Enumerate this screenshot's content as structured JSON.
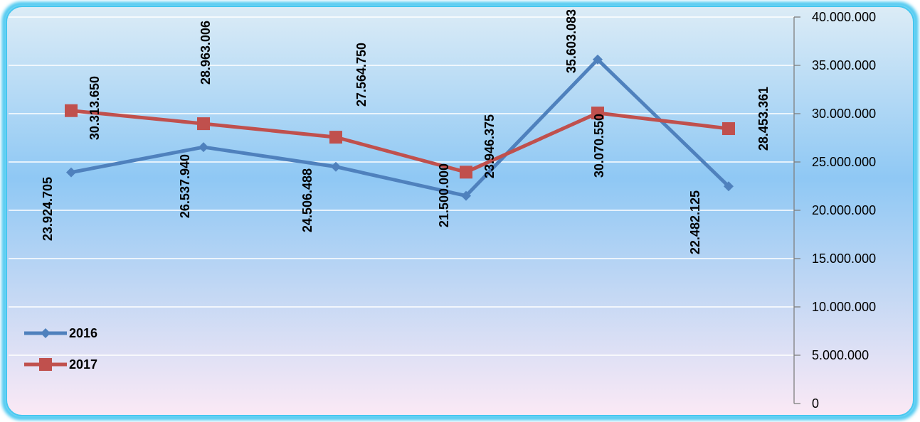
{
  "chart_data": {
    "type": "line",
    "title": "",
    "xlabel": "",
    "ylabel": "",
    "categories": [
      "",
      "",
      "",
      "",
      "",
      ""
    ],
    "ylim": [
      0,
      40000000
    ],
    "ytick_labels": [
      "0",
      "5.000.000",
      "10.000.000",
      "15.000.000",
      "20.000.000",
      "25.000.000",
      "30.000.000",
      "35.000.000",
      "40.000.000"
    ],
    "y_axis_side": "right",
    "grid": true,
    "legend_position": "left",
    "series": [
      {
        "name": "2016",
        "color": "#4f81bd",
        "marker": "diamond",
        "values": [
          23924705,
          26537940,
          24506488,
          21500000,
          35603083,
          22482125
        ],
        "labels": [
          "23.924.705",
          "26.537.940",
          "24.506.488",
          "21.500.000",
          "35.603.083",
          "22.482.125"
        ]
      },
      {
        "name": "2017",
        "color": "#c0504d",
        "marker": "square",
        "values": [
          30313650,
          28963006,
          27564750,
          23946375,
          30070550,
          28453361
        ],
        "labels": [
          "30.313.650",
          "28.963.006",
          "27.564.750",
          "23.946.375",
          "30.070.550",
          "28.453.361"
        ]
      }
    ]
  },
  "colors": {
    "frame_border": "#46c7f0",
    "gradient_top": "#dcecf6",
    "gradient_mid": "#8fc8f4",
    "gradient_bottom": "#fbe9f5",
    "gridline": "#ffffff",
    "axis": "#7f7f7f"
  }
}
